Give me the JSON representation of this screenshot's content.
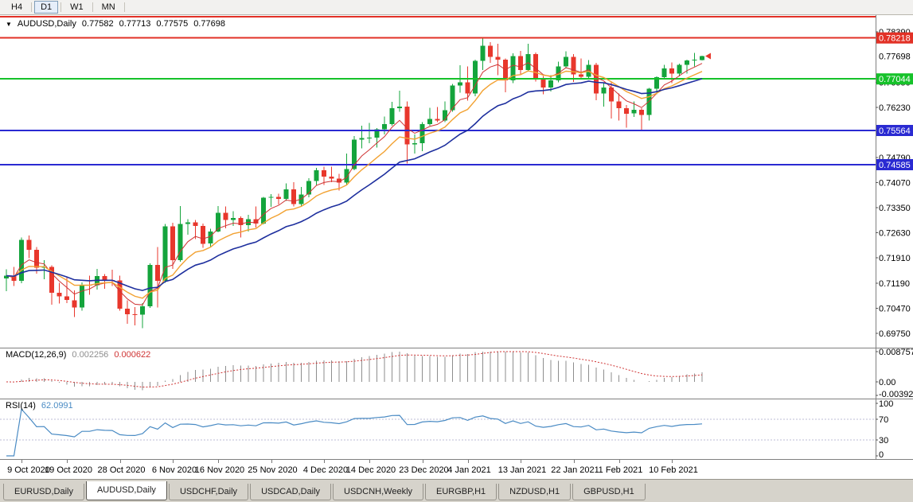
{
  "toolbar": {
    "timeframes": [
      "H4",
      "D1",
      "W1",
      "MN"
    ],
    "active": "D1"
  },
  "chart": {
    "symbol_label": "AUDUSD,Daily",
    "ohlc": {
      "open": "0.77582",
      "high": "0.77713",
      "low": "0.77575",
      "close": "0.77698"
    }
  },
  "indicators": {
    "macd": {
      "label": "MACD(12,26,9)",
      "value_main": "0.002256",
      "value_signal": "0.000622",
      "axis": [
        "0.008757",
        "0.00",
        "-0.003924"
      ]
    },
    "rsi": {
      "label": "RSI(14)",
      "value": "62.0991",
      "axis": [
        "100",
        "70",
        "30",
        "0"
      ],
      "levels": [
        70,
        30
      ]
    }
  },
  "price_axis": {
    "ticks": [
      "0.78390",
      "0.76950",
      "0.76230",
      "0.74790",
      "0.74070",
      "0.73350",
      "0.72630",
      "0.71910",
      "0.71190",
      "0.70470",
      "0.69750"
    ],
    "badges": [
      {
        "label": "0.78218",
        "color": "#e23126"
      },
      {
        "label": "0.77044",
        "color": "#16c22a"
      },
      {
        "label": "0.75564",
        "color": "#2a2ad2"
      },
      {
        "label": "0.74585",
        "color": "#2a2ad2"
      }
    ],
    "bid_label": "0.77698"
  },
  "x_axis": {
    "labels": [
      {
        "text": "9 Oct 2020",
        "i": 2
      },
      {
        "text": "19 Oct 2020",
        "i": 8
      },
      {
        "text": "28 Oct 2020",
        "i": 15
      },
      {
        "text": "6 Nov 2020",
        "i": 22
      },
      {
        "text": "16 Nov 2020",
        "i": 28
      },
      {
        "text": "25 Nov 2020",
        "i": 35
      },
      {
        "text": "4 Dec 2020",
        "i": 42
      },
      {
        "text": "14 Dec 2020",
        "i": 48
      },
      {
        "text": "23 Dec 2020",
        "i": 55
      },
      {
        "text": "4 Jan 2021",
        "i": 61
      },
      {
        "text": "13 Jan 2021",
        "i": 68
      },
      {
        "text": "22 Jan 2021",
        "i": 75
      },
      {
        "text": "1 Feb 2021",
        "i": 81
      },
      {
        "text": "10 Feb 2021",
        "i": 88
      }
    ]
  },
  "tabs": [
    "EURUSD,Daily",
    "AUDUSD,Daily",
    "USDCHF,Daily",
    "USDCAD,Daily",
    "USDCNH,Weekly",
    "EURGBP,H1",
    "NZDUSD,H1",
    "GBPUSD,H1"
  ],
  "active_tab": "AUDUSD,Daily",
  "colors": {
    "bull": "#14a43c",
    "bear": "#e8372c",
    "macd_hist": "#8e8e8e",
    "macd_signal": "#cf3434",
    "rsi": "#4a8bc4",
    "axis_line": "#808080",
    "rsi_level": "#bcbcd4"
  },
  "chart_data": {
    "type": "candlestick",
    "symbol": "AUDUSD",
    "timeframe": "Daily",
    "current_ohlc": {
      "open": 0.77582,
      "high": 0.77713,
      "low": 0.77575,
      "close": 0.77698
    },
    "visible_range": {
      "price_min": 0.6936,
      "price_max": 0.7885,
      "date_start": "7 Oct 2020",
      "date_end": "16 Feb 2021"
    },
    "horizontal_lines": [
      {
        "price": 0.7883,
        "color": "#e23126"
      },
      {
        "price": 0.78218,
        "color": "#e23126"
      },
      {
        "price": 0.77044,
        "color": "#16c22a"
      },
      {
        "price": 0.75564,
        "color": "#2a2ad2"
      },
      {
        "price": 0.74585,
        "color": "#2a2ad2"
      }
    ],
    "moving_averages": [
      {
        "period": 5,
        "type": "ema",
        "color": "#cf3333",
        "width": 1
      },
      {
        "period": 10,
        "type": "ema",
        "color": "#f2a232",
        "width": 1.4
      },
      {
        "period": 20,
        "type": "ema",
        "color": "#1e2f9e",
        "width": 1.6
      }
    ],
    "macd_settings": {
      "fast": 12,
      "slow": 26,
      "signal": 9,
      "axis_max": 0.008757,
      "axis_min": -0.003924
    },
    "rsi_settings": {
      "period": 14,
      "levels": [
        70,
        30
      ],
      "last_value": 62.0991
    },
    "candles": [
      [
        0.7132,
        0.7158,
        0.7096,
        0.714
      ],
      [
        0.714,
        0.7165,
        0.711,
        0.7125
      ],
      [
        0.7125,
        0.725,
        0.7118,
        0.7243
      ],
      [
        0.7243,
        0.7255,
        0.719,
        0.7214
      ],
      [
        0.7214,
        0.7222,
        0.7146,
        0.7163
      ],
      [
        0.7163,
        0.7185,
        0.713,
        0.7165
      ],
      [
        0.7165,
        0.717,
        0.7057,
        0.7091
      ],
      [
        0.7091,
        0.712,
        0.706,
        0.7081
      ],
      [
        0.7081,
        0.7135,
        0.7062,
        0.707
      ],
      [
        0.707,
        0.7098,
        0.7021,
        0.7049
      ],
      [
        0.7049,
        0.7121,
        0.704,
        0.7114
      ],
      [
        0.7114,
        0.714,
        0.7085,
        0.7113
      ],
      [
        0.7113,
        0.7159,
        0.71,
        0.7139
      ],
      [
        0.7139,
        0.7145,
        0.7103,
        0.7128
      ],
      [
        0.7128,
        0.7157,
        0.711,
        0.7126
      ],
      [
        0.7126,
        0.714,
        0.704,
        0.7045
      ],
      [
        0.7045,
        0.707,
        0.7002,
        0.7029
      ],
      [
        0.7029,
        0.705,
        0.6998,
        0.7028
      ],
      [
        0.7028,
        0.7062,
        0.699,
        0.7052
      ],
      [
        0.7052,
        0.7175,
        0.7048,
        0.7171
      ],
      [
        0.7171,
        0.7222,
        0.7049,
        0.7125
      ],
      [
        0.7125,
        0.7288,
        0.712,
        0.7282
      ],
      [
        0.7282,
        0.7292,
        0.716,
        0.7185
      ],
      [
        0.7185,
        0.734,
        0.718,
        0.7288
      ],
      [
        0.7288,
        0.7302,
        0.7258,
        0.7293
      ],
      [
        0.7293,
        0.73,
        0.7245,
        0.7283
      ],
      [
        0.7283,
        0.729,
        0.722,
        0.7232
      ],
      [
        0.7232,
        0.7275,
        0.7221,
        0.7267
      ],
      [
        0.7267,
        0.734,
        0.7265,
        0.732
      ],
      [
        0.732,
        0.7339,
        0.7276,
        0.73
      ],
      [
        0.73,
        0.7325,
        0.7283,
        0.7305
      ],
      [
        0.7305,
        0.731,
        0.725,
        0.7285
      ],
      [
        0.7285,
        0.7315,
        0.7267,
        0.7302
      ],
      [
        0.7302,
        0.7339,
        0.7278,
        0.729
      ],
      [
        0.729,
        0.7366,
        0.7287,
        0.7364
      ],
      [
        0.7364,
        0.7374,
        0.7337,
        0.7366
      ],
      [
        0.7366,
        0.7375,
        0.7344,
        0.736
      ],
      [
        0.736,
        0.7405,
        0.7355,
        0.7388
      ],
      [
        0.7388,
        0.7408,
        0.7339,
        0.7345
      ],
      [
        0.7345,
        0.7394,
        0.7338,
        0.7373
      ],
      [
        0.7373,
        0.742,
        0.7365,
        0.7412
      ],
      [
        0.7412,
        0.7449,
        0.74,
        0.7443
      ],
      [
        0.7443,
        0.7453,
        0.74,
        0.7424
      ],
      [
        0.7424,
        0.7453,
        0.7408,
        0.7418
      ],
      [
        0.7418,
        0.7432,
        0.7384,
        0.7407
      ],
      [
        0.7407,
        0.749,
        0.74,
        0.7446
      ],
      [
        0.7446,
        0.754,
        0.7443,
        0.753
      ],
      [
        0.753,
        0.757,
        0.7505,
        0.7535
      ],
      [
        0.7535,
        0.7578,
        0.752,
        0.7536
      ],
      [
        0.7536,
        0.7563,
        0.7508,
        0.756
      ],
      [
        0.756,
        0.7596,
        0.7545,
        0.7575
      ],
      [
        0.7575,
        0.7639,
        0.757,
        0.762
      ],
      [
        0.762,
        0.767,
        0.761,
        0.7625
      ],
      [
        0.7625,
        0.764,
        0.7462,
        0.7517
      ],
      [
        0.7517,
        0.7545,
        0.749,
        0.752
      ],
      [
        0.752,
        0.758,
        0.7497,
        0.7575
      ],
      [
        0.7575,
        0.7622,
        0.757,
        0.759
      ],
      [
        0.759,
        0.7624,
        0.758,
        0.7585
      ],
      [
        0.7585,
        0.764,
        0.758,
        0.7615
      ],
      [
        0.7615,
        0.769,
        0.761,
        0.7685
      ],
      [
        0.7685,
        0.7743,
        0.7665,
        0.7694
      ],
      [
        0.7694,
        0.774,
        0.7642,
        0.7662
      ],
      [
        0.7662,
        0.776,
        0.7655,
        0.7756
      ],
      [
        0.7756,
        0.782,
        0.773,
        0.78
      ],
      [
        0.78,
        0.781,
        0.775,
        0.7768
      ],
      [
        0.7768,
        0.7805,
        0.7715,
        0.776
      ],
      [
        0.776,
        0.7763,
        0.7666,
        0.77
      ],
      [
        0.77,
        0.7778,
        0.7692,
        0.777
      ],
      [
        0.777,
        0.7785,
        0.7715,
        0.773
      ],
      [
        0.773,
        0.7805,
        0.7725,
        0.7775
      ],
      [
        0.7775,
        0.778,
        0.7697,
        0.7702
      ],
      [
        0.7702,
        0.7713,
        0.766,
        0.768
      ],
      [
        0.768,
        0.7715,
        0.7668,
        0.77
      ],
      [
        0.77,
        0.7754,
        0.7694,
        0.774
      ],
      [
        0.774,
        0.7784,
        0.7735,
        0.7768
      ],
      [
        0.7768,
        0.7775,
        0.7696,
        0.7717
      ],
      [
        0.7717,
        0.7763,
        0.7706,
        0.771
      ],
      [
        0.771,
        0.7758,
        0.7705,
        0.7745
      ],
      [
        0.7745,
        0.775,
        0.7643,
        0.7663
      ],
      [
        0.7663,
        0.7695,
        0.7625,
        0.768
      ],
      [
        0.768,
        0.7696,
        0.7591,
        0.764
      ],
      [
        0.764,
        0.7663,
        0.7585,
        0.762
      ],
      [
        0.762,
        0.763,
        0.7564,
        0.7605
      ],
      [
        0.7605,
        0.764,
        0.7595,
        0.7616
      ],
      [
        0.7616,
        0.762,
        0.7557,
        0.7601
      ],
      [
        0.7601,
        0.7679,
        0.7585,
        0.7676
      ],
      [
        0.7676,
        0.7712,
        0.766,
        0.7709
      ],
      [
        0.7709,
        0.7745,
        0.7703,
        0.7735
      ],
      [
        0.7735,
        0.7752,
        0.7692,
        0.772
      ],
      [
        0.772,
        0.7748,
        0.7712,
        0.7745
      ],
      [
        0.7745,
        0.776,
        0.772,
        0.7757
      ],
      [
        0.7757,
        0.7779,
        0.774,
        0.7759
      ],
      [
        0.77582,
        0.77713,
        0.77575,
        0.77698
      ]
    ]
  }
}
